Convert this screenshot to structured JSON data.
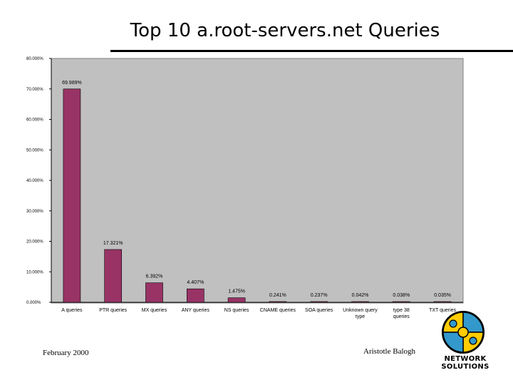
{
  "slide": {
    "title": "Top 10 a.root-servers.net Queries",
    "footer_left": "February 2000",
    "footer_right": "Aristotle Balogh",
    "logo_text_line1": "NETWORK",
    "logo_text_line2": "SOLUTIONS"
  },
  "colors": {
    "plot_background": "#c0c0c0",
    "bar": "#993366"
  },
  "chart_data": {
    "type": "bar",
    "title": "",
    "xlabel": "",
    "ylabel": "",
    "ylim": [
      0,
      80
    ],
    "yticks": [
      "0.000%",
      "10.000%",
      "20.000%",
      "30.000%",
      "40.000%",
      "50.000%",
      "60.000%",
      "70.000%",
      "80.000%"
    ],
    "ytick_values": [
      0,
      10,
      20,
      30,
      40,
      50,
      60,
      70,
      80
    ],
    "categories": [
      "A queries",
      "PTR queries",
      "MX queries",
      "ANY queries",
      "NS queries",
      "CNAME queries",
      "SOA queries",
      "Unknown query type",
      "type 38 queries",
      "TXT queries"
    ],
    "values": [
      69.989,
      17.321,
      6.392,
      4.407,
      1.475,
      0.241,
      0.237,
      0.042,
      0.038,
      0.035
    ],
    "data_labels": [
      "69.989%",
      "17.321%",
      "6.392%",
      "4.407%",
      "1.475%",
      "0.241%",
      "0.237%",
      "0.042%",
      "0.038%",
      "0.035%"
    ],
    "grid": false,
    "legend": "none"
  }
}
